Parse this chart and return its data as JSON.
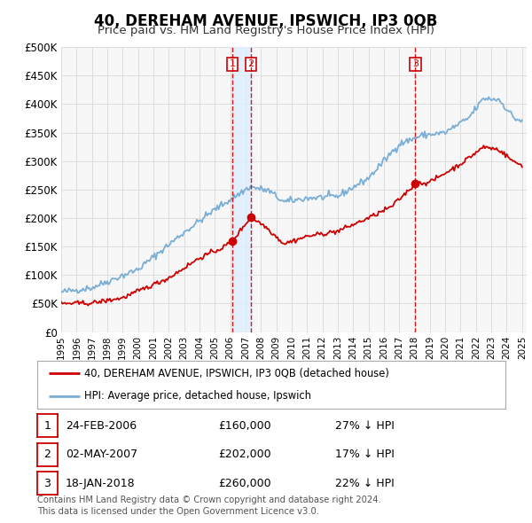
{
  "title": "40, DEREHAM AVENUE, IPSWICH, IP3 0QB",
  "subtitle": "Price paid vs. HM Land Registry's House Price Index (HPI)",
  "title_fontsize": 12,
  "subtitle_fontsize": 9.5,
  "ylabel_ticks": [
    "£0",
    "£50K",
    "£100K",
    "£150K",
    "£200K",
    "£250K",
    "£300K",
    "£350K",
    "£400K",
    "£450K",
    "£500K"
  ],
  "ytick_vals": [
    0,
    50000,
    100000,
    150000,
    200000,
    250000,
    300000,
    350000,
    400000,
    450000,
    500000
  ],
  "ylim": [
    0,
    500000
  ],
  "xlim_start": 1995.0,
  "xlim_end": 2025.3,
  "transactions": [
    {
      "num": 1,
      "date": "24-FEB-2006",
      "price": 160000,
      "hpi_pct": "27% ↓ HPI",
      "x_year": 2006.15,
      "y_val": 160000
    },
    {
      "num": 2,
      "date": "02-MAY-2007",
      "price": 202000,
      "hpi_pct": "17% ↓ HPI",
      "x_year": 2007.35,
      "y_val": 202000
    },
    {
      "num": 3,
      "date": "18-JAN-2018",
      "price": 260000,
      "hpi_pct": "22% ↓ HPI",
      "x_year": 2018.05,
      "y_val": 260000
    }
  ],
  "legend_label_red": "40, DEREHAM AVENUE, IPSWICH, IP3 0QB (detached house)",
  "legend_label_blue": "HPI: Average price, detached house, Ipswich",
  "footer": "Contains HM Land Registry data © Crown copyright and database right 2024.\nThis data is licensed under the Open Government Licence v3.0.",
  "red_color": "#cc0000",
  "blue_color": "#7aaed6",
  "shade_color": "#ddeeff",
  "vline_color": "#cc0000",
  "grid_color": "#dddddd",
  "bg_color": "#ffffff",
  "plot_bg_color": "#f7f7f7",
  "dot_color": "#cc0000"
}
